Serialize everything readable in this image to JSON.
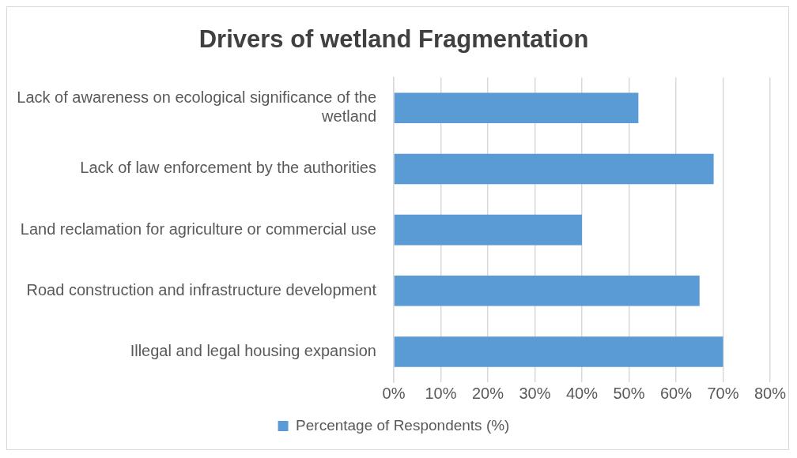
{
  "chart_data": {
    "type": "bar",
    "orientation": "horizontal",
    "title": "Drivers of wetland Fragmentation",
    "categories": [
      "Lack of awareness on ecological significance of the wetland",
      "Lack of law enforcement by the authorities",
      "Land reclamation for agriculture or commercial use",
      "Road construction and infrastructure development",
      "Illegal and legal housing expansion"
    ],
    "series": [
      {
        "name": "Percentage of Respondents (%)",
        "color": "#5b9bd5",
        "values": [
          52,
          68,
          40,
          65,
          70
        ]
      }
    ],
    "xlim": [
      0,
      80
    ],
    "xticks": [
      {
        "value": 0,
        "label": "0%"
      },
      {
        "value": 10,
        "label": "10%"
      },
      {
        "value": 20,
        "label": "20%"
      },
      {
        "value": 30,
        "label": "30%"
      },
      {
        "value": 40,
        "label": "40%"
      },
      {
        "value": 50,
        "label": "50%"
      },
      {
        "value": 60,
        "label": "60%"
      },
      {
        "value": 70,
        "label": "70%"
      },
      {
        "value": 80,
        "label": "80%"
      }
    ],
    "grid": "x",
    "legend": "bottom"
  }
}
